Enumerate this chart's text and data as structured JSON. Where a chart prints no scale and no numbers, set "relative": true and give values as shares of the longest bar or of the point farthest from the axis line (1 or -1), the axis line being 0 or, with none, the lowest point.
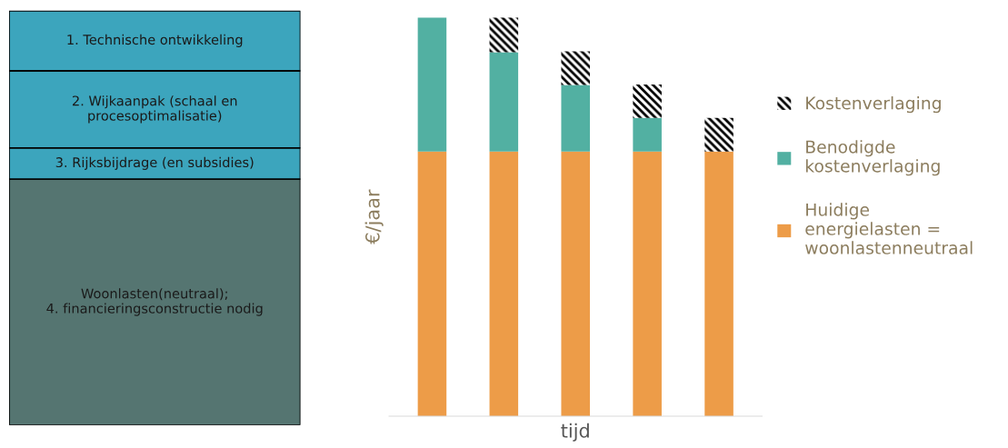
{
  "chart_data": [
    {
      "type": "bar",
      "stacked": true,
      "relative": true,
      "categories": [
        null
      ],
      "legend": false,
      "series": [
        {
          "name": "Woonlasten(neutraal);\n4. financieringsconstructie nodig",
          "color": "#557571",
          "values": [
            0.594
          ]
        },
        {
          "name": "3. Rijksbijdrage (en subsidies)",
          "color": "#3ca5bd",
          "values": [
            0.075
          ]
        },
        {
          "name": "2. Wijkaanpak (schaal en\nprocesoptimalisatie)",
          "color": "#3ca5bd",
          "values": [
            0.186
          ]
        },
        {
          "name": "1. Technische ontwikkeling",
          "color": "#3ca5bd",
          "values": [
            0.145
          ]
        }
      ]
    },
    {
      "type": "bar",
      "stacked": true,
      "relative": true,
      "categories": [
        null,
        null,
        null,
        null,
        null
      ],
      "xlabel": "tijd",
      "ylabel": "€/jaar",
      "legend": "right",
      "series": [
        {
          "name": "Huidige\nenergielasten =\nwoonlastenneutraal",
          "color": "#ed9c48",
          "values": [
            0.664,
            0.664,
            0.664,
            0.664,
            0.664
          ]
        },
        {
          "name": "Benodigde\nkostenverlaging",
          "color": "#52b0a2",
          "values": [
            0.336,
            0.249,
            0.167,
            0.084,
            0
          ]
        },
        {
          "name": "Kostenverlaging",
          "color": "#000000",
          "values": [
            0,
            0.087,
            0.084,
            0.084,
            0.084
          ]
        }
      ]
    }
  ]
}
